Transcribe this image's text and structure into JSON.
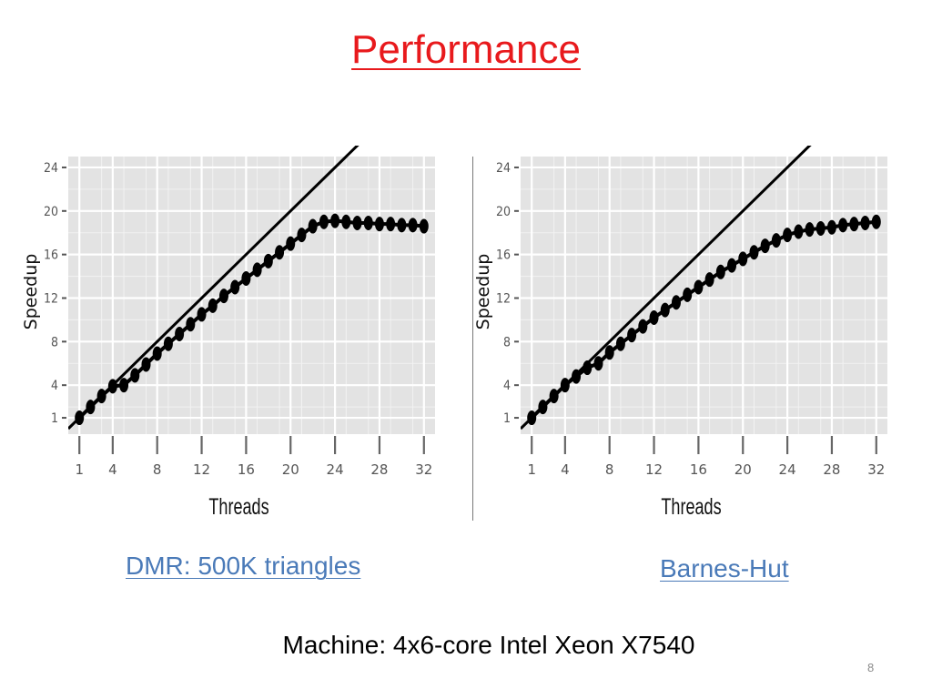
{
  "slide": {
    "title": "Performance",
    "captions": [
      "DMR: 500K triangles",
      "Barnes-Hut"
    ],
    "machine_note": "Machine: 4x6-core Intel  Xeon X7540",
    "page_number": "8"
  },
  "chart_data": [
    {
      "type": "line",
      "xlabel": "Threads",
      "ylabel": "Speedup",
      "xlim": [
        0,
        33
      ],
      "ylim": [
        -0.5,
        25
      ],
      "x_ticks": [
        1,
        4,
        8,
        12,
        16,
        20,
        24,
        28,
        32
      ],
      "y_ticks": [
        1,
        4,
        8,
        12,
        16,
        20,
        24
      ],
      "grid": true,
      "reference_line": {
        "slope": 1,
        "intercept": 0
      },
      "series": [
        {
          "x": [
            1,
            2,
            3,
            4,
            5,
            6,
            7,
            8,
            9,
            10,
            11,
            12,
            13,
            14,
            15,
            16,
            17,
            18,
            19,
            20,
            21,
            22,
            23,
            24,
            25,
            26,
            27,
            28,
            29,
            30,
            31,
            32
          ],
          "y": [
            1.0,
            2.0,
            3.0,
            3.9,
            4.0,
            4.9,
            5.9,
            6.9,
            7.8,
            8.7,
            9.6,
            10.5,
            11.3,
            12.2,
            13.0,
            13.8,
            14.6,
            15.4,
            16.2,
            17.0,
            17.8,
            18.6,
            19.0,
            19.1,
            19.0,
            18.9,
            18.9,
            18.8,
            18.8,
            18.7,
            18.7,
            18.6
          ]
        }
      ]
    },
    {
      "type": "line",
      "xlabel": "Threads",
      "ylabel": "Speedup",
      "xlim": [
        0,
        33
      ],
      "ylim": [
        -0.5,
        25
      ],
      "x_ticks": [
        1,
        4,
        8,
        12,
        16,
        20,
        24,
        28,
        32
      ],
      "y_ticks": [
        1,
        4,
        8,
        12,
        16,
        20,
        24
      ],
      "grid": true,
      "reference_line": {
        "slope": 1,
        "intercept": 0
      },
      "series": [
        {
          "x": [
            1,
            2,
            3,
            4,
            5,
            6,
            7,
            8,
            9,
            10,
            11,
            12,
            13,
            14,
            15,
            16,
            17,
            18,
            19,
            20,
            21,
            22,
            23,
            24,
            25,
            26,
            27,
            28,
            29,
            30,
            31,
            32
          ],
          "y": [
            1.0,
            2.0,
            3.0,
            4.0,
            4.8,
            5.6,
            6.0,
            7.0,
            7.8,
            8.6,
            9.4,
            10.2,
            10.9,
            11.6,
            12.3,
            13.0,
            13.7,
            14.4,
            15.0,
            15.6,
            16.2,
            16.8,
            17.3,
            17.8,
            18.1,
            18.3,
            18.4,
            18.5,
            18.7,
            18.8,
            18.9,
            19.0
          ]
        }
      ]
    }
  ]
}
